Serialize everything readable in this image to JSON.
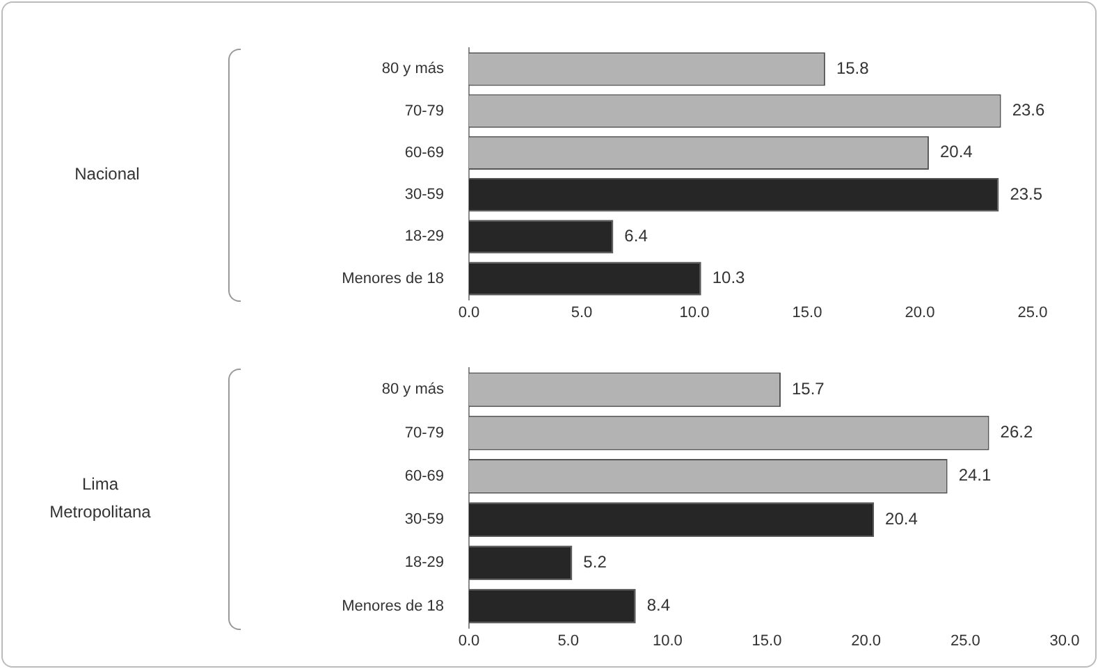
{
  "chart_data": [
    {
      "type": "bar",
      "orientation": "horizontal",
      "ylabel": "Nacional",
      "categories": [
        "80 y más",
        "70-79",
        "60-69",
        "30-59",
        "18-29",
        "Menores de 18"
      ],
      "values": [
        15.8,
        23.6,
        20.4,
        23.5,
        6.4,
        10.3
      ],
      "colors": [
        "#b3b3b3",
        "#b3b3b3",
        "#b3b3b3",
        "#262626",
        "#262626",
        "#262626"
      ],
      "data_labels": true,
      "xlim": [
        0,
        25
      ],
      "xticks": [
        {
          "value": 0,
          "label": "0.0"
        },
        {
          "value": 5,
          "label": "5.0"
        },
        {
          "value": 10,
          "label": "10.0"
        },
        {
          "value": 15,
          "label": "15.0"
        },
        {
          "value": 20,
          "label": "20.0"
        },
        {
          "value": 25,
          "label": "25.0"
        }
      ],
      "grid": false,
      "legend": false
    },
    {
      "type": "bar",
      "orientation": "horizontal",
      "ylabel": "Lima Metropolitana",
      "categories": [
        "80 y más",
        "70-79",
        "60-69",
        "30-59",
        "18-29",
        "Menores de 18"
      ],
      "values": [
        15.7,
        26.2,
        24.1,
        20.4,
        5.2,
        8.4
      ],
      "colors": [
        "#b3b3b3",
        "#b3b3b3",
        "#b3b3b3",
        "#262626",
        "#262626",
        "#262626"
      ],
      "data_labels": true,
      "xlim": [
        0,
        30
      ],
      "xticks": [
        {
          "value": 0,
          "label": "0.0"
        },
        {
          "value": 5,
          "label": "5.0"
        },
        {
          "value": 10,
          "label": "10.0"
        },
        {
          "value": 15,
          "label": "15.0"
        },
        {
          "value": 20,
          "label": "20.0"
        },
        {
          "value": 25,
          "label": "25.0"
        },
        {
          "value": 30,
          "label": "30.0"
        }
      ],
      "grid": false,
      "legend": false
    }
  ]
}
